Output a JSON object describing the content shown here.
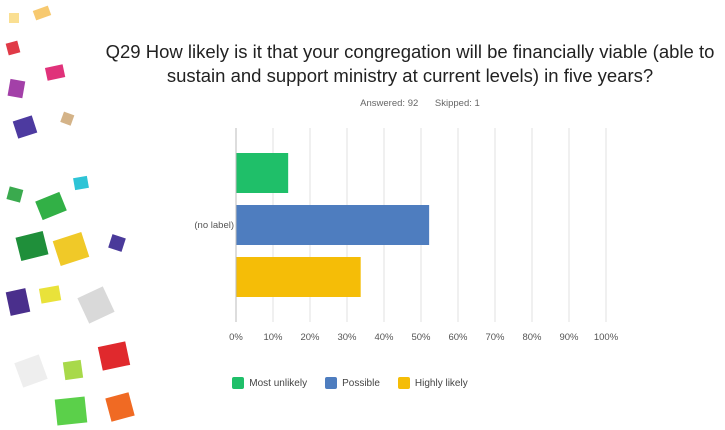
{
  "question": {
    "line1": "Q29 How likely is it that your congregation will be financially viable (able to",
    "line2": "sustain and support ministry at current levels) in five years?"
  },
  "stats": {
    "answered": "Answered: 92",
    "skipped": "Skipped: 1"
  },
  "chart_data": {
    "type": "bar",
    "orientation": "horizontal",
    "categories": [
      "(no label)"
    ],
    "series": [
      {
        "name": "Most unlikely",
        "values": [
          14.1
        ],
        "color": "#1fbf69"
      },
      {
        "name": "Possible",
        "values": [
          52.2
        ],
        "color": "#4e7dbf"
      },
      {
        "name": "Highly likely",
        "values": [
          33.7
        ],
        "color": "#f5bd07"
      }
    ],
    "xlim": [
      0,
      100
    ],
    "xticks": [
      "0%",
      "10%",
      "20%",
      "30%",
      "40%",
      "50%",
      "60%",
      "70%",
      "80%",
      "90%",
      "100%"
    ],
    "grid": true,
    "legend": "bottom"
  }
}
